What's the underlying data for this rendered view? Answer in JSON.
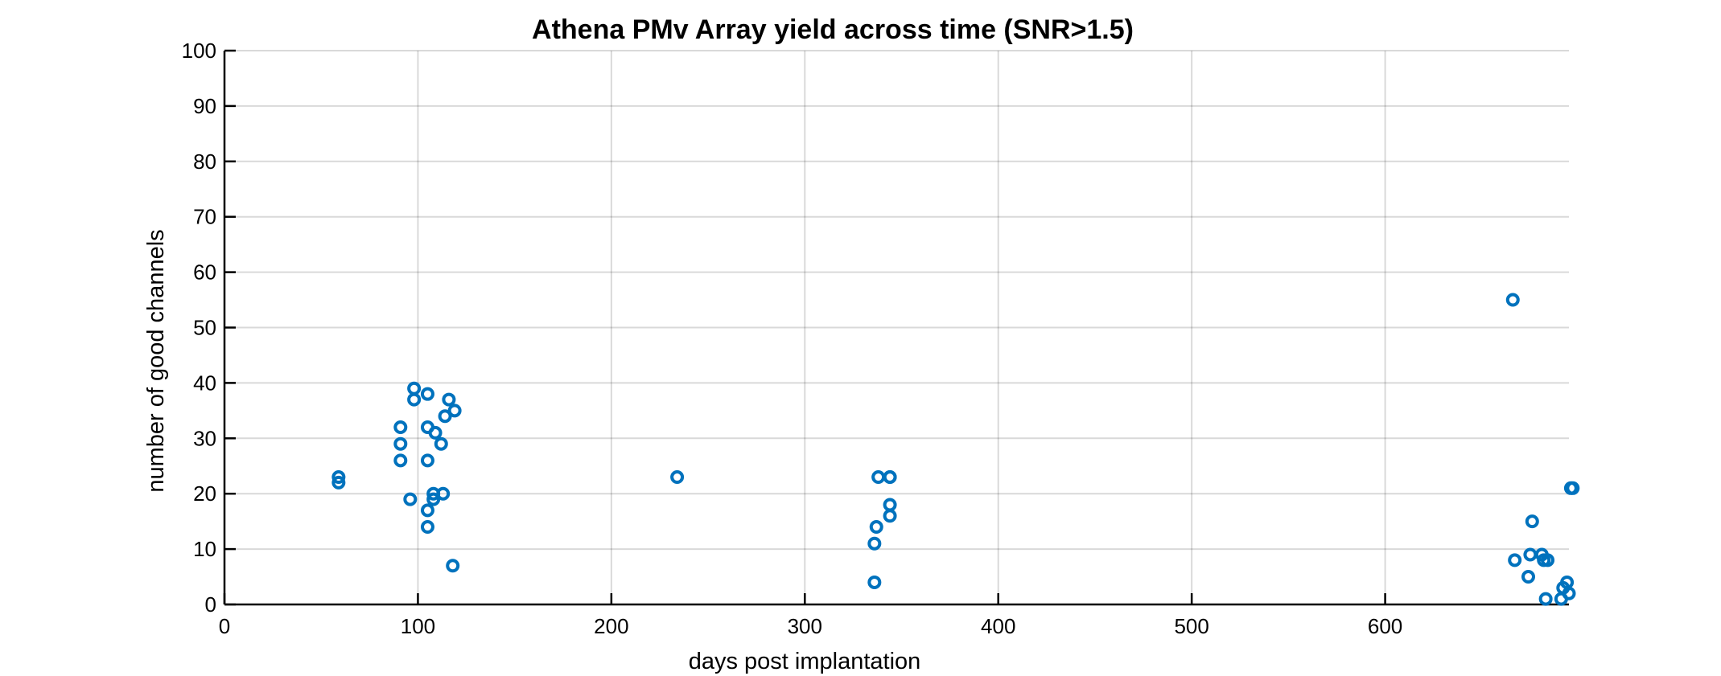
{
  "chart_data": {
    "type": "scatter",
    "title": "Athena PMv Array yield across time (SNR>1.5)",
    "xlabel": "days post implantation",
    "ylabel": "number of good channels",
    "xlim": [
      0,
      695
    ],
    "ylim": [
      0,
      100
    ],
    "xticks": [
      0,
      100,
      200,
      300,
      400,
      500,
      600
    ],
    "yticks": [
      0,
      10,
      20,
      30,
      40,
      50,
      60,
      70,
      80,
      90,
      100
    ],
    "grid": true,
    "marker": "circle-open",
    "color": "#0072BD",
    "series": [
      {
        "x": [
          59,
          59,
          91,
          91,
          91,
          96,
          98,
          98,
          105,
          105,
          105,
          105,
          105,
          108,
          108,
          109,
          112,
          113,
          114,
          116,
          118,
          119,
          234,
          336,
          336,
          337,
          338,
          344,
          344,
          344,
          344,
          666,
          667,
          674,
          675,
          676,
          681,
          682,
          683,
          684,
          691,
          692,
          694,
          695,
          696,
          697
        ],
        "y": [
          23,
          22,
          32,
          29,
          26,
          19,
          39,
          37,
          38,
          32,
          26,
          17,
          14,
          20,
          19,
          31,
          29,
          20,
          34,
          37,
          7,
          35,
          23,
          11,
          4,
          14,
          23,
          23,
          18,
          16,
          23,
          55,
          8,
          5,
          9,
          15,
          9,
          8,
          1,
          8,
          1,
          3,
          4,
          2,
          21,
          21
        ]
      }
    ]
  }
}
